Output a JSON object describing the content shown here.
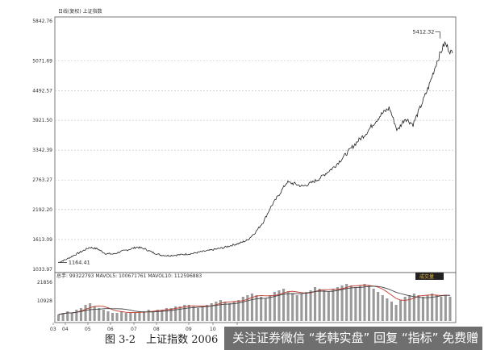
{
  "chart_data": [
    {
      "type": "line",
      "title": "日线(复权) 上证指数",
      "ylim": [
        1033.97,
        5842.76
      ],
      "y_ticks": [
        "5842.76",
        "5071.69",
        "4492.57",
        "3921.50",
        "3342.39",
        "2763.27",
        "2192.20",
        "1613.09",
        "1033.97"
      ],
      "x_ticks": [
        "03",
        "04",
        "05",
        "06",
        "07",
        "08",
        "09",
        "10",
        "11"
      ],
      "grid": "dashed horizontal",
      "annotations": [
        {
          "text": "5412.32",
          "x": 0.96,
          "y": 5412.32,
          "marker": "arrow"
        },
        {
          "text": "1164.41",
          "x": 0.01,
          "y": 1164.41,
          "marker": "arrow"
        }
      ],
      "series": [
        {
          "values": [
            [
              0.0,
              1164
            ],
            [
              0.02,
              1225
            ],
            [
              0.04,
              1305
            ],
            [
              0.06,
              1380
            ],
            [
              0.08,
              1460
            ],
            [
              0.1,
              1430
            ],
            [
              0.12,
              1340
            ],
            [
              0.14,
              1330
            ],
            [
              0.16,
              1380
            ],
            [
              0.18,
              1420
            ],
            [
              0.2,
              1465
            ],
            [
              0.22,
              1430
            ],
            [
              0.24,
              1360
            ],
            [
              0.26,
              1310
            ],
            [
              0.28,
              1300
            ],
            [
              0.3,
              1310
            ],
            [
              0.32,
              1325
            ],
            [
              0.34,
              1340
            ],
            [
              0.36,
              1370
            ],
            [
              0.38,
              1395
            ],
            [
              0.4,
              1425
            ],
            [
              0.42,
              1455
            ],
            [
              0.44,
              1500
            ],
            [
              0.46,
              1540
            ],
            [
              0.48,
              1600
            ],
            [
              0.5,
              1750
            ],
            [
              0.52,
              1950
            ],
            [
              0.54,
              2250
            ],
            [
              0.56,
              2480
            ],
            [
              0.58,
              2720
            ],
            [
              0.6,
              2690
            ],
            [
              0.62,
              2640
            ],
            [
              0.64,
              2700
            ],
            [
              0.66,
              2780
            ],
            [
              0.68,
              2900
            ],
            [
              0.7,
              3020
            ],
            [
              0.72,
              3180
            ],
            [
              0.74,
              3350
            ],
            [
              0.76,
              3520
            ],
            [
              0.78,
              3660
            ],
            [
              0.8,
              3860
            ],
            [
              0.82,
              4040
            ],
            [
              0.84,
              4160
            ],
            [
              0.86,
              3720
            ],
            [
              0.88,
              3960
            ],
            [
              0.9,
              3840
            ],
            [
              0.92,
              4200
            ],
            [
              0.94,
              4580
            ],
            [
              0.96,
              5050
            ],
            [
              0.98,
              5412
            ],
            [
              1.0,
              5200
            ]
          ]
        }
      ]
    },
    {
      "type": "bar",
      "title": "总手: 99322793 MAVOL5: 100671761 MAVOL10: 112596883",
      "y_ticks": [
        "21856",
        "10928"
      ],
      "annotations": [
        {
          "text": "成交量"
        }
      ],
      "series": [
        {
          "name": "总手",
          "values": [
            4,
            5,
            6,
            5,
            7,
            8,
            10,
            11,
            9,
            8,
            7,
            6,
            5,
            5,
            6,
            5,
            5,
            5,
            6,
            6,
            7,
            6,
            7,
            7,
            8,
            8,
            9,
            9,
            10,
            10,
            9,
            8,
            9,
            10,
            11,
            12,
            13,
            12,
            11,
            12,
            13,
            15,
            16,
            17,
            16,
            15,
            14,
            16,
            18,
            19,
            20,
            18,
            17,
            16,
            17,
            18,
            19,
            21,
            20,
            19,
            18,
            20,
            21,
            22,
            23,
            22,
            21,
            22,
            23,
            22,
            20,
            18,
            16,
            14,
            12,
            10,
            13,
            15,
            16,
            17,
            16,
            15,
            16,
            17,
            16,
            15,
            16,
            15
          ]
        },
        {
          "name": "MAVOL5",
          "kind": "line"
        },
        {
          "name": "MAVOL10",
          "kind": "line"
        }
      ]
    }
  ],
  "caption": "图 3-2　上证指数 2006",
  "banner": {
    "text": "关注证券微信 “老韩实盘” 回复 “指标” 免费赠"
  },
  "colors": {
    "price_line": "#222222",
    "volume_bar": "#9a9a9a",
    "mavol5": "#c0392b",
    "mavol10": "#444444",
    "grid": "#bdbdbd"
  }
}
